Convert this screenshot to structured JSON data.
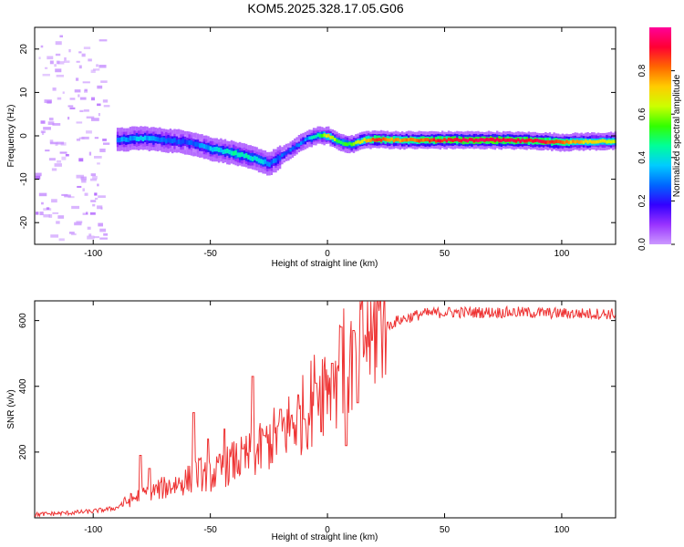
{
  "figure_title": "KOM5.2025.328.17.05.G06",
  "chart_data": [
    {
      "type": "heatmap",
      "panel": "top",
      "xlabel": "Height of straight line (km)",
      "ylabel": "Frequency (Hz)",
      "xlim": [
        -125,
        123
      ],
      "ylim": [
        -25,
        25
      ],
      "xticks": [
        -100,
        -50,
        0,
        50,
        100
      ],
      "yticks": [
        -20,
        -10,
        0,
        10,
        20
      ],
      "colorbar": {
        "label": "Normalized spectral amplitude",
        "range": [
          0.0,
          1.0
        ],
        "ticks": [
          0.0,
          0.2,
          0.4,
          0.6,
          0.8
        ],
        "colormap": [
          "#cc99ff",
          "#9933ff",
          "#3300ff",
          "#0066ff",
          "#00ccff",
          "#00ff99",
          "#33ff00",
          "#ccff00",
          "#ffcc00",
          "#ff6600",
          "#ff0033",
          "#ff0099"
        ]
      },
      "ridge": {
        "points": [
          {
            "x": -90,
            "f": -1,
            "a": 0.3
          },
          {
            "x": -80,
            "f": -0.5,
            "a": 0.35
          },
          {
            "x": -70,
            "f": -1,
            "a": 0.3
          },
          {
            "x": -60,
            "f": -1.5,
            "a": 0.25
          },
          {
            "x": -50,
            "f": -3,
            "a": 0.35
          },
          {
            "x": -40,
            "f": -4,
            "a": 0.45
          },
          {
            "x": -30,
            "f": -5.5,
            "a": 0.4
          },
          {
            "x": -25,
            "f": -6.5,
            "a": 0.3
          },
          {
            "x": -18,
            "f": -4,
            "a": 0.25
          },
          {
            "x": -10,
            "f": -1,
            "a": 0.3
          },
          {
            "x": -5,
            "f": 0,
            "a": 0.45
          },
          {
            "x": 0,
            "f": 0,
            "a": 0.7
          },
          {
            "x": 5,
            "f": -1.5,
            "a": 0.5
          },
          {
            "x": 10,
            "f": -2,
            "a": 0.55
          },
          {
            "x": 15,
            "f": -1,
            "a": 0.7
          },
          {
            "x": 20,
            "f": -0.8,
            "a": 0.85
          },
          {
            "x": 30,
            "f": -1,
            "a": 0.75
          },
          {
            "x": 50,
            "f": -1,
            "a": 0.9
          },
          {
            "x": 70,
            "f": -1,
            "a": 0.95
          },
          {
            "x": 90,
            "f": -1.2,
            "a": 0.9
          },
          {
            "x": 100,
            "f": -1.5,
            "a": 0.8
          },
          {
            "x": 110,
            "f": -1.3,
            "a": 0.7
          },
          {
            "x": 123,
            "f": -1.2,
            "a": 0.65
          }
        ],
        "noise_region_x": [
          -125,
          -95
        ],
        "noise_amplitude": 0.05
      }
    },
    {
      "type": "line",
      "panel": "bottom",
      "xlabel": "Height of straight line (km)",
      "ylabel": "SNR (v/v)",
      "xlim": [
        -125,
        123
      ],
      "ylim": [
        0,
        660
      ],
      "xticks": [
        -100,
        -50,
        0,
        50,
        100
      ],
      "yticks": [
        200,
        400,
        600
      ],
      "line_color": "#ee3333",
      "series": [
        {
          "name": "SNR",
          "x": [
            -125,
            -110,
            -100,
            -90,
            -80,
            -70,
            -60,
            -55,
            -50,
            -45,
            -40,
            -35,
            -30,
            -20,
            -10,
            -5,
            0,
            5,
            10,
            15,
            20,
            25,
            30,
            40,
            50,
            60,
            80,
            100,
            123
          ],
          "y": [
            10,
            15,
            20,
            30,
            60,
            80,
            100,
            120,
            110,
            130,
            150,
            160,
            175,
            230,
            280,
            330,
            380,
            400,
            420,
            480,
            530,
            580,
            600,
            620,
            625,
            625,
            625,
            622,
            620
          ],
          "spikes": [
            {
              "x": -80,
              "y": 190
            },
            {
              "x": -76,
              "y": 150
            },
            {
              "x": -57,
              "y": 320
            },
            {
              "x": -51,
              "y": 240
            },
            {
              "x": -44,
              "y": 270
            },
            {
              "x": -36,
              "y": 210
            },
            {
              "x": -32,
              "y": 430
            },
            {
              "x": -27,
              "y": 250
            },
            {
              "x": -20,
              "y": 330
            },
            {
              "x": -10,
              "y": 300
            },
            {
              "x": -5,
              "y": 410
            },
            {
              "x": 2,
              "y": 470
            },
            {
              "x": 6,
              "y": 580
            },
            {
              "x": 8,
              "y": 220
            },
            {
              "x": 11,
              "y": 570
            },
            {
              "x": 13,
              "y": 350
            },
            {
              "x": 19,
              "y": 540
            }
          ]
        }
      ]
    }
  ]
}
